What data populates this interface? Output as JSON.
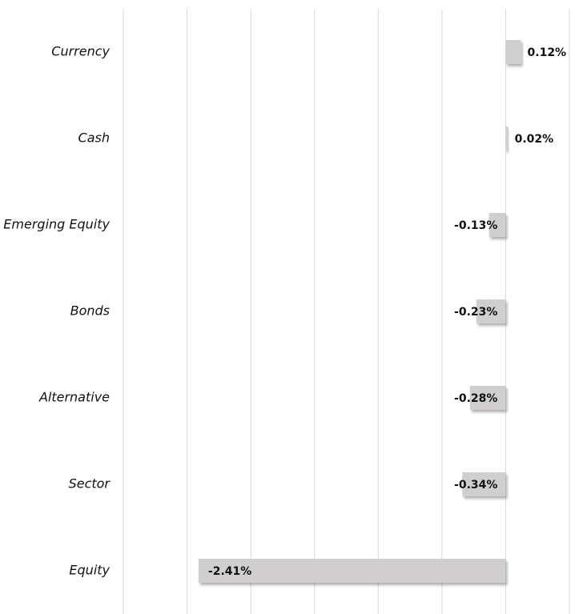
{
  "chart_data": {
    "type": "bar",
    "orientation": "horizontal",
    "categories": [
      "Currency",
      "Cash",
      "Emerging Equity",
      "Bonds",
      "Alternative",
      "Sector",
      "Equity"
    ],
    "values": [
      0.12,
      0.02,
      -0.13,
      -0.23,
      -0.28,
      -0.34,
      -2.41
    ],
    "value_labels": [
      "0.12%",
      "0.02%",
      "-0.13%",
      "-0.23%",
      "-0.28%",
      "-0.34%",
      "-2.41%"
    ],
    "color": "#d0cece",
    "xlim": [
      -3,
      0.5
    ],
    "xticks": [
      -3,
      -2.5,
      -2,
      -1.5,
      -1,
      -0.5,
      0,
      0.5
    ],
    "grid": true
  }
}
